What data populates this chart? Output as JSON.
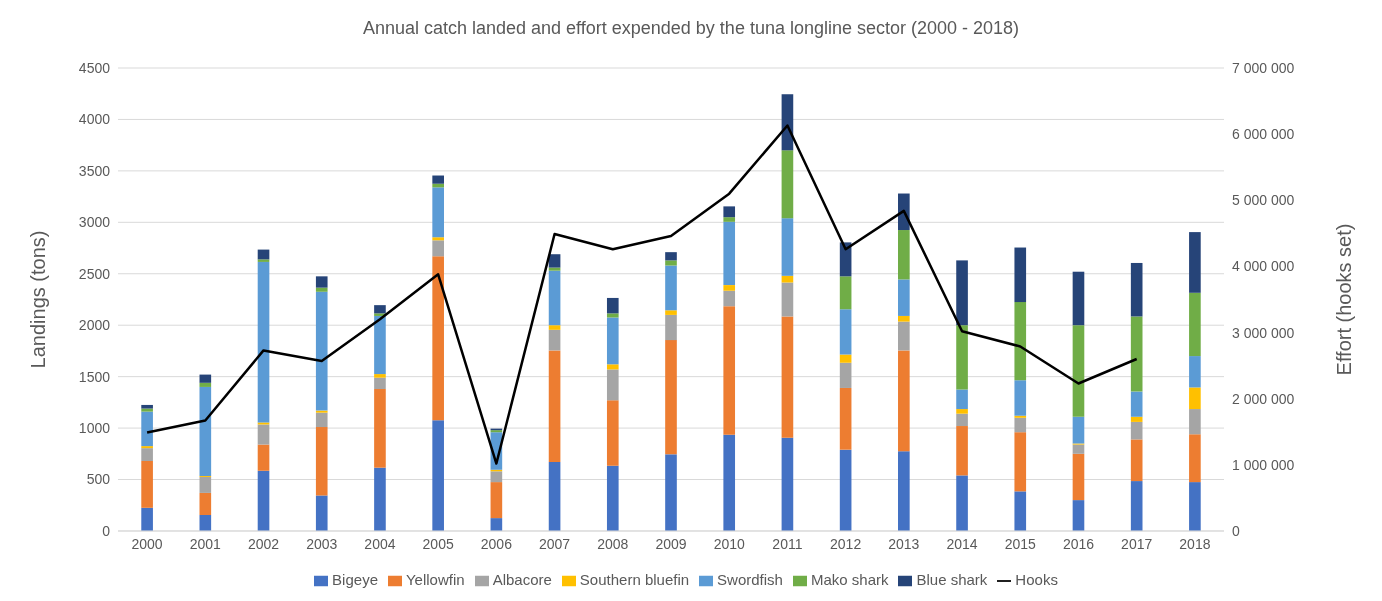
{
  "chart_data": {
    "type": "bar",
    "title": "Annual catch landed and effort expended by the tuna longline sector (2000 - 2018)",
    "ylabel": "Landings (tons)",
    "y2label": "Effort (hooks set)",
    "stacked": true,
    "grid": "y",
    "legend": "bottom",
    "marker": "none",
    "line_style": "solid",
    "categories": [
      "2000",
      "2001",
      "2002",
      "2003",
      "2004",
      "2005",
      "2006",
      "2007",
      "2008",
      "2009",
      "2010",
      "2011",
      "2012",
      "2013",
      "2014",
      "2015",
      "2016",
      "2017",
      "2018"
    ],
    "ylim": [
      0,
      4500
    ],
    "yticks": [
      0,
      500,
      1000,
      1500,
      2000,
      2500,
      3000,
      3500,
      4000,
      4500
    ],
    "y2lim": [
      0,
      7000000
    ],
    "y2ticks": [
      {
        "value": 0,
        "label": "0"
      },
      {
        "value": 1000000,
        "label": "1 000 000"
      },
      {
        "value": 2000000,
        "label": "2 000 000"
      },
      {
        "value": 3000000,
        "label": "3 000 000"
      },
      {
        "value": 4000000,
        "label": "4 000 000"
      },
      {
        "value": 5000000,
        "label": "5 000 000"
      },
      {
        "value": 6000000,
        "label": "6 000 000"
      },
      {
        "value": 7000000,
        "label": "7 000 000"
      }
    ],
    "series": [
      {
        "name": "Bigeye",
        "color": "#4472c4",
        "values": [
          225,
          155,
          585,
          345,
          615,
          1075,
          125,
          670,
          635,
          745,
          935,
          905,
          790,
          775,
          540,
          385,
          300,
          485,
          475
        ]
      },
      {
        "name": "Yellowfin",
        "color": "#ed7d31",
        "values": [
          455,
          215,
          255,
          665,
          765,
          1595,
          350,
          1085,
          635,
          1110,
          1250,
          1180,
          600,
          980,
          480,
          575,
          450,
          405,
          465
        ]
      },
      {
        "name": "Albacore",
        "color": "#a5a5a5",
        "values": [
          125,
          155,
          195,
          140,
          110,
          155,
          105,
          200,
          300,
          245,
          150,
          330,
          245,
          280,
          120,
          140,
          90,
          170,
          245
        ]
      },
      {
        "name": "Southern bluefin",
        "color": "#ffc000",
        "values": [
          20,
          10,
          20,
          20,
          35,
          30,
          15,
          45,
          50,
          45,
          55,
          65,
          80,
          55,
          45,
          20,
          10,
          50,
          210
        ]
      },
      {
        "name": "Swordfish",
        "color": "#5b9bd5",
        "values": [
          335,
          865,
          1560,
          1155,
          565,
          485,
          365,
          530,
          455,
          435,
          615,
          560,
          440,
          355,
          190,
          345,
          260,
          245,
          305
        ]
      },
      {
        "name": "Mako shark",
        "color": "#70ad47",
        "values": [
          30,
          40,
          25,
          40,
          25,
          35,
          20,
          30,
          40,
          50,
          45,
          660,
          320,
          480,
          625,
          760,
          890,
          730,
          615
        ]
      },
      {
        "name": "Blue shark",
        "color": "#264478",
        "values": [
          35,
          80,
          95,
          110,
          80,
          80,
          15,
          130,
          150,
          80,
          105,
          545,
          330,
          355,
          630,
          530,
          520,
          520,
          590
        ]
      },
      {
        "name": "Hooks",
        "type": "line",
        "axis": "y2",
        "color": "#000000",
        "values": [
          1490000,
          1670000,
          2730000,
          2570000,
          3200000,
          3880000,
          1020000,
          4490000,
          4260000,
          4460000,
          5100000,
          6130000,
          4260000,
          4840000,
          3020000,
          2790000,
          2230000,
          2600000,
          null
        ]
      }
    ]
  }
}
